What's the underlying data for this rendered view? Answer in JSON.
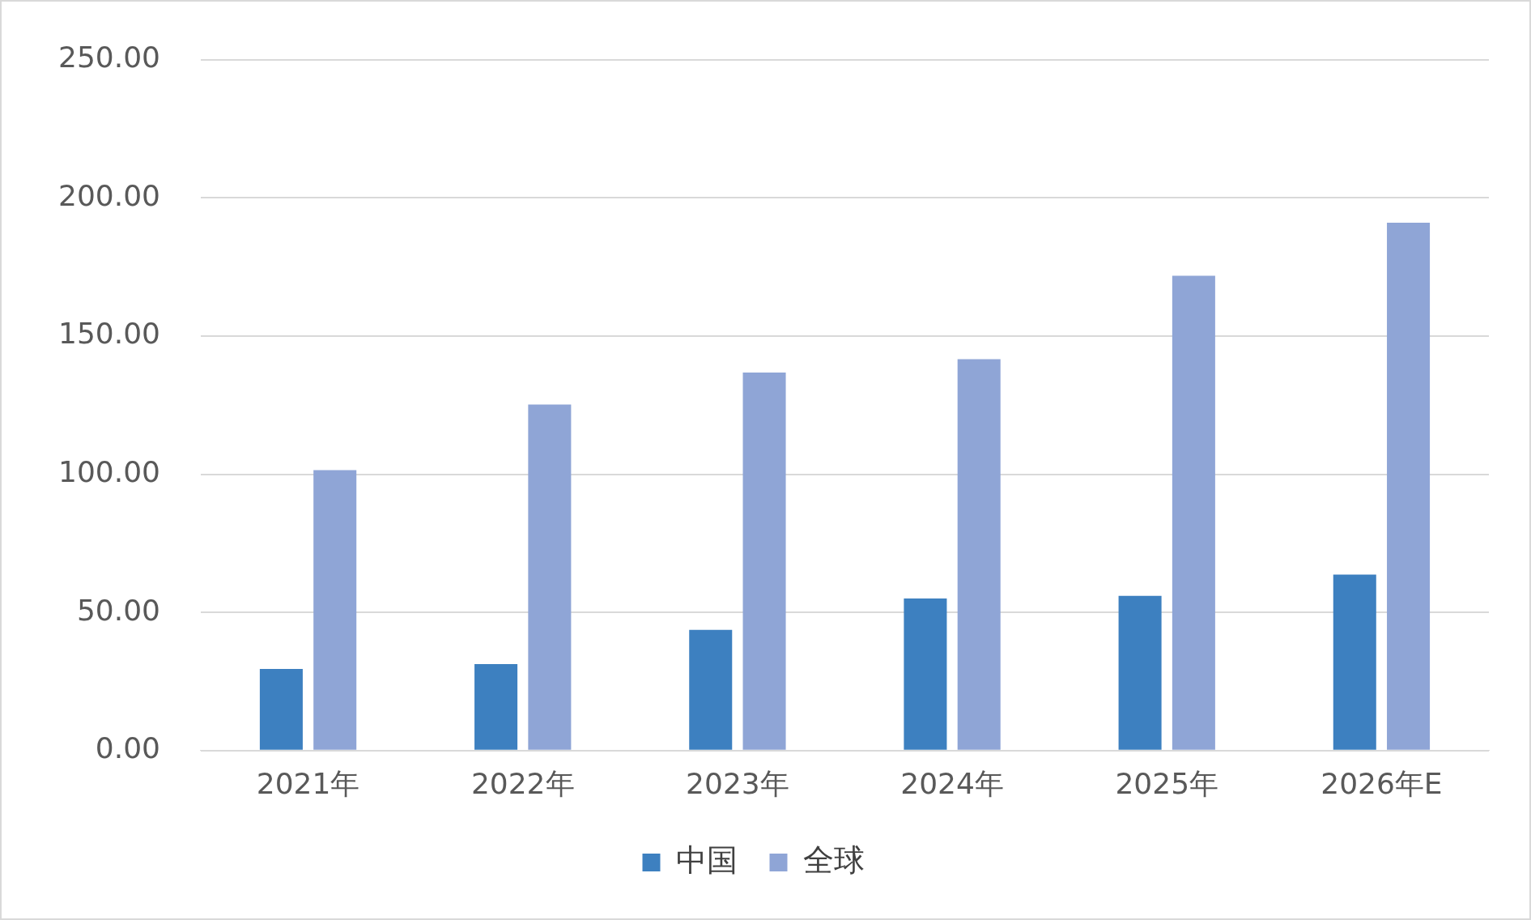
{
  "chart_data": {
    "type": "bar",
    "categories": [
      "2021年",
      "2022年",
      "2023年",
      "2024年",
      "2025年",
      "2026年E"
    ],
    "series": [
      {
        "name": "中国",
        "color": "#3d80c0",
        "values": [
          29.5,
          31.3,
          43.7,
          55.0,
          56.0,
          63.7
        ]
      },
      {
        "name": "全球",
        "color": "#8fa5d6",
        "values": [
          101.5,
          125.2,
          136.8,
          141.6,
          171.8,
          191.0
        ]
      }
    ],
    "ylim": [
      0,
      250
    ],
    "yticks": [
      {
        "value": 0,
        "label": "0.00"
      },
      {
        "value": 50,
        "label": "50.00"
      },
      {
        "value": 100,
        "label": "100.00"
      },
      {
        "value": 150,
        "label": "150.00"
      },
      {
        "value": 200,
        "label": "200.00"
      },
      {
        "value": 250,
        "label": "250.00"
      }
    ],
    "grid": "y",
    "legend": "bottom"
  }
}
